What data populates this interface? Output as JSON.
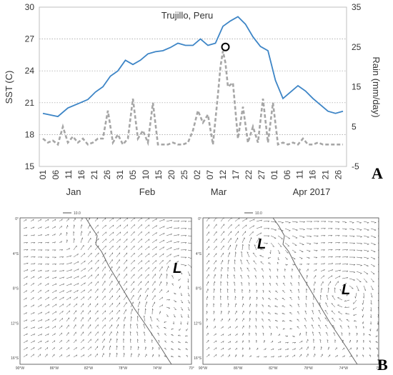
{
  "panels": {
    "a_letter": "A",
    "b_letter": "B"
  },
  "chart_data": {
    "type": "line",
    "title": "Trujillo, Peru",
    "ylabel_left": "SST (C)",
    "ylabel_right": "Rain (mm/day)",
    "ylim_left": [
      15,
      30
    ],
    "ylim_right": [
      -5,
      35
    ],
    "yticks_left": [
      "15",
      "18",
      "21",
      "24",
      "27",
      "30"
    ],
    "yticks_right": [
      "-5",
      "5",
      "15",
      "25",
      "35"
    ],
    "xtick_labels": [
      "01",
      "06",
      "11",
      "16",
      "21",
      "26",
      "31",
      "05",
      "10",
      "15",
      "20",
      "25",
      "02",
      "07",
      "12",
      "17",
      "22",
      "27",
      "01",
      "06",
      "11",
      "16",
      "21",
      "26"
    ],
    "month_labels": [
      "Jan",
      "Feb",
      "Mar",
      "Apr 2017"
    ],
    "grid": "horizontal-dotted",
    "series": [
      {
        "axis": "left",
        "color": "#3d85c6",
        "style": "solid",
        "x": [
          0,
          6,
          10,
          15,
          18,
          21,
          24,
          27,
          30,
          33,
          36,
          39,
          42,
          45,
          48,
          51,
          54,
          57,
          60,
          63,
          66,
          69,
          72,
          75,
          78,
          81,
          84,
          87,
          90,
          93,
          96,
          99,
          102,
          105,
          108,
          111,
          114,
          117,
          120
        ],
        "values": [
          20.0,
          19.7,
          20.5,
          21.0,
          21.3,
          22.0,
          22.5,
          23.5,
          24.0,
          25.0,
          24.6,
          25.0,
          25.6,
          25.8,
          25.9,
          26.2,
          26.6,
          26.4,
          26.4,
          27.0,
          26.4,
          26.6,
          28.2,
          28.7,
          29.1,
          28.4,
          27.2,
          26.3,
          25.9,
          23.1,
          21.4,
          22.0,
          22.6,
          22.1,
          21.4,
          20.8,
          20.2,
          20.0,
          20.2
        ]
      },
      {
        "axis": "right",
        "color": "#a6a6a6",
        "style": "dashed",
        "x": [
          0,
          2,
          4,
          6,
          8,
          10,
          12,
          14,
          16,
          18,
          20,
          22,
          24,
          26,
          28,
          30,
          32,
          34,
          36,
          38,
          40,
          42,
          44,
          46,
          48,
          50,
          52,
          54,
          56,
          58,
          60,
          62,
          64,
          66,
          68,
          70,
          71,
          72,
          73,
          74,
          76,
          78,
          80,
          82,
          84,
          86,
          88,
          90,
          92,
          94,
          96,
          98,
          100,
          102,
          104,
          106,
          108,
          110,
          112,
          114,
          116,
          118,
          120
        ],
        "values": [
          2,
          1,
          1.5,
          0.5,
          5,
          1,
          2.5,
          1,
          2,
          0.5,
          1,
          2,
          2,
          9,
          1,
          3,
          0.5,
          2,
          12,
          2,
          4,
          1,
          11,
          0.5,
          0.5,
          0.5,
          1,
          0.5,
          0.5,
          1,
          4,
          9,
          6,
          8,
          0.5,
          13,
          20,
          24,
          21,
          15,
          16,
          2,
          10,
          1,
          5,
          1,
          12,
          1,
          11,
          0.5,
          1,
          0.5,
          1,
          0.5,
          2,
          0.5,
          0.5,
          1,
          0.5,
          0.5,
          0.5,
          0.5,
          0.5
        ]
      }
    ],
    "annotation": {
      "type": "circle",
      "x": 73,
      "axis": "right",
      "y": 25
    }
  },
  "maps": {
    "scale_label": "10.0",
    "lon_labels": [
      "90°W",
      "86°W",
      "82°W",
      "78°W",
      "74°W",
      "70°"
    ],
    "lat_labels": [
      "0°",
      "4°S",
      "8°S",
      "12°S",
      "16°S"
    ],
    "left_low": "L",
    "right_low_1": "L",
    "right_low_2": "L"
  }
}
